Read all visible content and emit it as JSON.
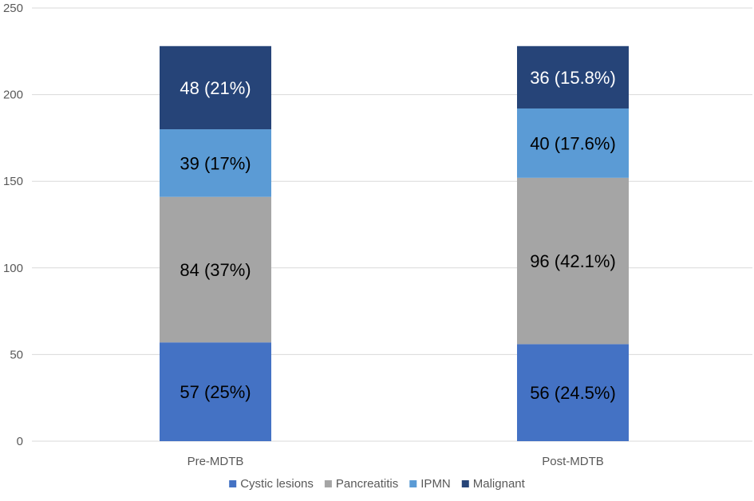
{
  "chart_data": {
    "type": "bar",
    "stacked": true,
    "categories": [
      "Pre-MDTB",
      "Post-MDTB"
    ],
    "series": [
      {
        "name": "Cystic lesions",
        "values": [
          57,
          56
        ],
        "labels": [
          "57 (25%)",
          "56 (24.5%)"
        ],
        "color": "#4472C4",
        "label_color": "#000000"
      },
      {
        "name": "Pancreatitis",
        "values": [
          84,
          96
        ],
        "labels": [
          "84 (37%)",
          "96 (42.1%)"
        ],
        "color": "#A5A5A5",
        "label_color": "#000000"
      },
      {
        "name": "IPMN",
        "values": [
          39,
          40
        ],
        "labels": [
          "39 (17%)",
          "40 (17.6%)"
        ],
        "color": "#5B9BD5",
        "label_color": "#000000"
      },
      {
        "name": "Malignant",
        "values": [
          48,
          36
        ],
        "labels": [
          "48 (21%)",
          "36 (15.8%)"
        ],
        "color": "#264478",
        "label_color": "#ffffff"
      }
    ],
    "ylim": [
      0,
      250
    ],
    "yticks": [
      0,
      50,
      100,
      150,
      200,
      250
    ],
    "grid": true,
    "legend_position": "bottom",
    "title": "",
    "xlabel": "",
    "ylabel": ""
  }
}
